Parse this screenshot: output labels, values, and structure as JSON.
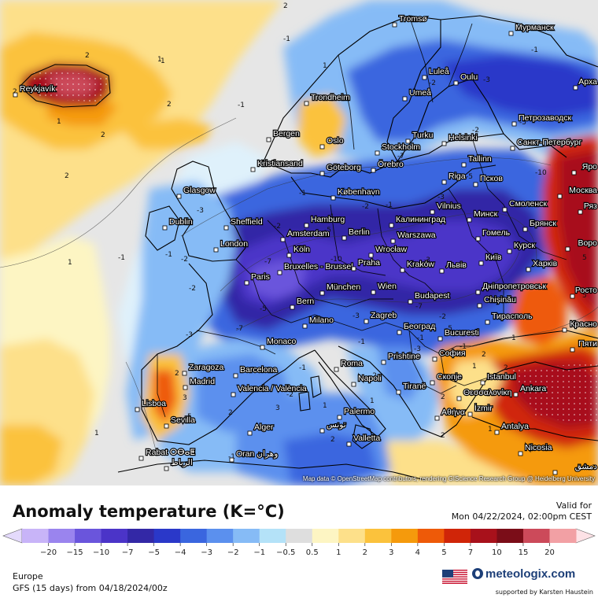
{
  "header": {
    "title": "Anomaly temperature (K=°C)",
    "valid_label": "Valid for",
    "valid_date": "Mon 04/22/2024, 02:00pm CEST"
  },
  "footer": {
    "region": "Europe",
    "model": "GFS (15 days) from  04/18/2024/00z",
    "brand": "meteologix.com",
    "support": "supported by Karsten Haustein",
    "attribution": "Map data © OpenStreetMap contributors, rendering GIScience Research Group @ Heidelberg University"
  },
  "colors": {
    "deep_blue": "#3a36c8",
    "blue": "#3f6fe6",
    "light_blue": "#8ec3f5",
    "pale_blue": "#dff1fb",
    "gray": "#dcdcdc",
    "pale_yellow": "#fdf2b5",
    "yellow": "#fbd165",
    "orange": "#f5a213",
    "red": "#d82f10",
    "dark_red": "#a3131a",
    "sea_neutral": "#e9e9e9",
    "brand": "#1d3f78"
  },
  "legend": {
    "labels": [
      "-20",
      "-15",
      "-10",
      "-7",
      "-5",
      "-4",
      "-3",
      "-2",
      "-1",
      "-0.5",
      "0.5",
      "1",
      "2",
      "3",
      "4",
      "5",
      "7",
      "10",
      "15",
      "20"
    ],
    "colors": [
      "#c8b4f8",
      "#9a84ee",
      "#6a55dc",
      "#4b34c8",
      "#3328a6",
      "#2a38c9",
      "#3a66df",
      "#5b90ee",
      "#86bbf6",
      "#b4e2f8",
      "#dedede",
      "#fdf5c3",
      "#fde08a",
      "#fbc23c",
      "#f59a0c",
      "#ee5a08",
      "#d02508",
      "#a8111b",
      "#7b0d18",
      "#cc4a5a",
      "#f2a0a4"
    ]
  },
  "cities": [
    {
      "name": "Tromsø"
    },
    {
      "name": "Мурманск"
    },
    {
      "name": "Reykjavík"
    },
    {
      "name": "Luleå"
    },
    {
      "name": "Oulu"
    },
    {
      "name": "Арха"
    },
    {
      "name": "Umeå"
    },
    {
      "name": "Trondheim"
    },
    {
      "name": "Петрозаводск"
    },
    {
      "name": "Turku"
    },
    {
      "name": "Helsinki"
    },
    {
      "name": "Санкт-Петербург"
    },
    {
      "name": "Bergen"
    },
    {
      "name": "Oslo"
    },
    {
      "name": "Stockholm"
    },
    {
      "name": "Örebro"
    },
    {
      "name": "Kristiansand"
    },
    {
      "name": "Tallinn"
    },
    {
      "name": "Göteborg"
    },
    {
      "name": "Яро"
    },
    {
      "name": "Riga"
    },
    {
      "name": "Псков"
    },
    {
      "name": "Glasgow"
    },
    {
      "name": "København"
    },
    {
      "name": "Москва"
    },
    {
      "name": "Vilnius"
    },
    {
      "name": "Смоленск"
    },
    {
      "name": "Ряз"
    },
    {
      "name": "Минск"
    },
    {
      "name": "Hamburg"
    },
    {
      "name": "Калининград"
    },
    {
      "name": "Брянск"
    },
    {
      "name": "Dublin"
    },
    {
      "name": "Sheffield"
    },
    {
      "name": "Berlin"
    },
    {
      "name": "Amsterdam"
    },
    {
      "name": "Warszawa"
    },
    {
      "name": "Гомель"
    },
    {
      "name": "Воро"
    },
    {
      "name": "London"
    },
    {
      "name": "Köln"
    },
    {
      "name": "Wrocław"
    },
    {
      "name": "Курск"
    },
    {
      "name": "Київ"
    },
    {
      "name": "Bruxelles - Brussel"
    },
    {
      "name": "Praha"
    },
    {
      "name": "Kraków"
    },
    {
      "name": "Львів"
    },
    {
      "name": "Харків"
    },
    {
      "name": "Paris"
    },
    {
      "name": "München"
    },
    {
      "name": "Wien"
    },
    {
      "name": "Дніпропетровськ"
    },
    {
      "name": "Росто"
    },
    {
      "name": "Budapest"
    },
    {
      "name": "Bern"
    },
    {
      "name": "Chișinău"
    },
    {
      "name": "Milano"
    },
    {
      "name": "Zagreb"
    },
    {
      "name": "Тирасполь"
    },
    {
      "name": "Красно"
    },
    {
      "name": "Београд"
    },
    {
      "name": "Bucuresti"
    },
    {
      "name": "Monaco"
    },
    {
      "name": "Пяти"
    },
    {
      "name": "София"
    },
    {
      "name": "Prishtine"
    },
    {
      "name": "Roma"
    },
    {
      "name": "Zaragoza"
    },
    {
      "name": "Barcelona"
    },
    {
      "name": "Istanbul"
    },
    {
      "name": "Скопје"
    },
    {
      "name": "Madrid"
    },
    {
      "name": "Napoli"
    },
    {
      "name": "Tiranë"
    },
    {
      "name": "Θεσσαλονίκη"
    },
    {
      "name": "Valencia / València"
    },
    {
      "name": "Ankara"
    },
    {
      "name": "Lisboa"
    },
    {
      "name": "İzmir"
    },
    {
      "name": "Αθήνα"
    },
    {
      "name": "Palermo"
    },
    {
      "name": "Sevilla"
    },
    {
      "name": "Alger"
    },
    {
      "name": "تونس"
    },
    {
      "name": "Antalya"
    },
    {
      "name": "Valletta"
    },
    {
      "name": "Rabat ⵔⴱⴰⵟ"
    },
    {
      "name": "الرباط"
    },
    {
      "name": "Oran وهران"
    },
    {
      "name": "Nicosia"
    },
    {
      "name": "دمشق"
    }
  ],
  "contour_labels": [
    "-1",
    "-1",
    "-2",
    "-2",
    "-3",
    "-1",
    "-5",
    "-7",
    "-10",
    "-5",
    "-3",
    "-1",
    "1",
    "2",
    "2",
    "1",
    "2",
    "-2",
    "-3",
    "-5",
    "-10",
    "-7",
    "-2",
    "-1",
    "2",
    "1",
    "-1",
    "3",
    "2",
    "5",
    "2",
    "1",
    "2",
    "-1",
    "-2",
    "-1",
    "1",
    "2",
    "-5",
    "-3",
    "-7",
    "-1",
    "-2",
    "-1",
    "5",
    "2",
    "1",
    "-3",
    "-5",
    "-2",
    "2",
    "1",
    "3",
    "-1",
    "-2",
    "2",
    "-5",
    "-7",
    "-3",
    "2",
    "1",
    "-1",
    "5",
    "1",
    "-2",
    "2",
    "-1",
    "-3",
    "1",
    "2",
    "-2",
    "1"
  ]
}
